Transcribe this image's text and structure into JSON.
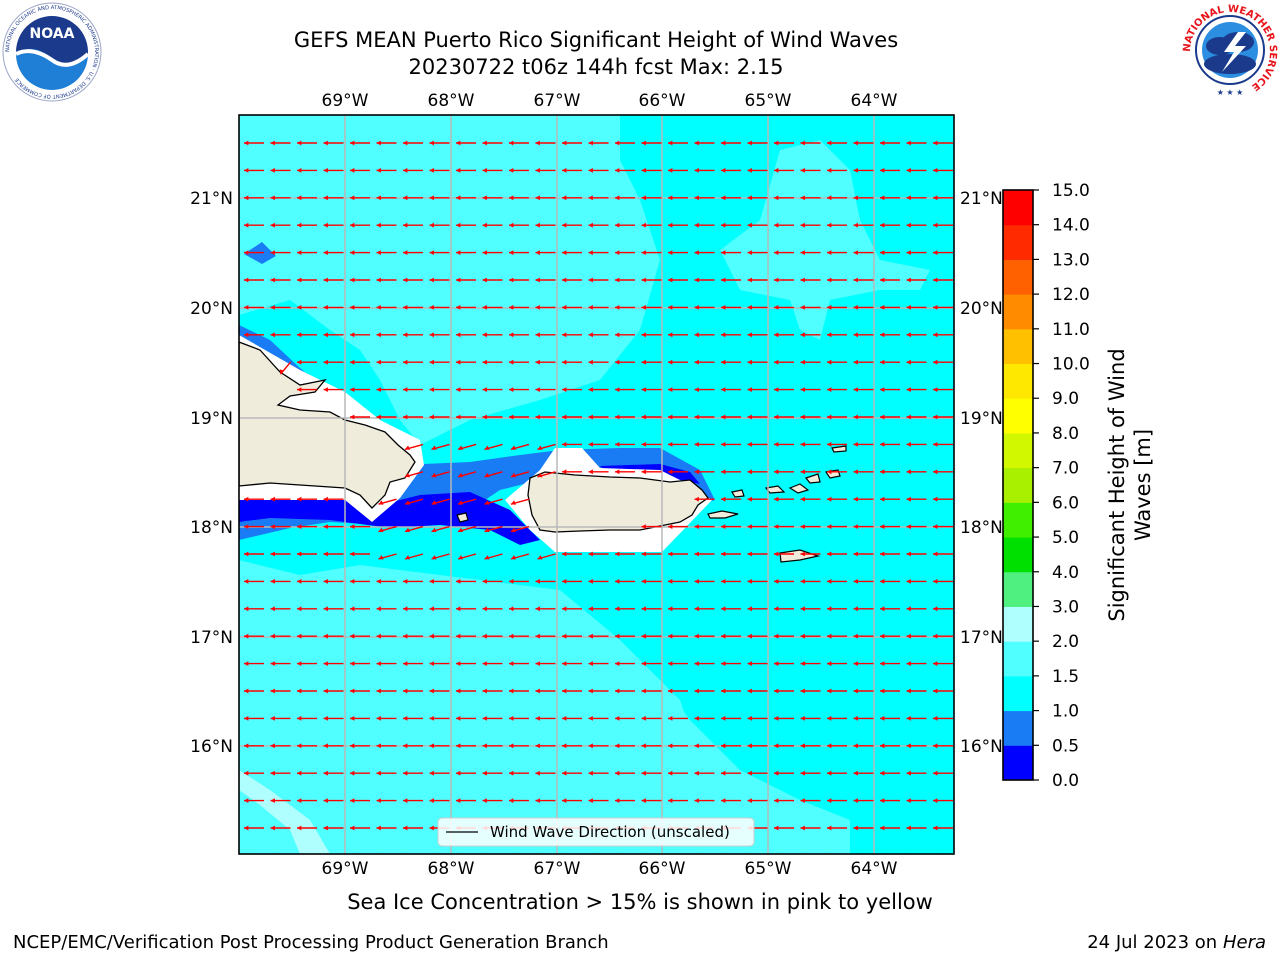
{
  "title": {
    "line1": "GEFS MEAN Puerto Rico Significant Height of Wind Waves",
    "line2": "20230722 t06z 144h fcst   Max: 2.15"
  },
  "map": {
    "lon_labels": [
      "69°W",
      "68°W",
      "67°W",
      "66°W",
      "65°W",
      "64°W"
    ],
    "lat_labels": [
      "21°N",
      "20°N",
      "19°N",
      "18°N",
      "17°N",
      "16°N"
    ],
    "legend_label": "Wind Wave Direction (unscaled)",
    "arrow_color": "#ff0000",
    "land_color": "#efecdc"
  },
  "colorbar": {
    "label": "Significant Height of Wind Waves [m]",
    "label_line1": "Significant Height of Wind",
    "label_line2": "Waves [m]",
    "tick_labels": [
      "0.0",
      "0.5",
      "1.0",
      "1.5",
      "2.0",
      "3.0",
      "4.0",
      "5.0",
      "6.0",
      "7.0",
      "8.0",
      "9.0",
      "10.0",
      "11.0",
      "12.0",
      "13.0",
      "14.0",
      "15.0"
    ],
    "colors": [
      "#0000ff",
      "#1a7cf5",
      "#00ffff",
      "#50ffff",
      "#b0ffff",
      "#50f080",
      "#00e000",
      "#40ee00",
      "#a8f000",
      "#d2f800",
      "#ffff00",
      "#ffe800",
      "#ffc000",
      "#ff8c00",
      "#ff6000",
      "#ff2a00",
      "#ff0000"
    ]
  },
  "subtitle": "Sea Ice Concentration > 15% is shown in pink to yellow",
  "footer": {
    "left": "NCEP/EMC/Verification Post Processing Product Generation Branch",
    "right_date": "24 Jul 2023 on ",
    "right_machine": "Hera"
  },
  "logos": {
    "noaa_text": "NOAA",
    "noaa_ring": "NATIONAL OCEANIC AND ATMOSPHERIC ADMINISTRATION · U.S. DEPARTMENT OF COMMERCE",
    "nws_ring": "NATIONAL WEATHER SERVICE"
  }
}
